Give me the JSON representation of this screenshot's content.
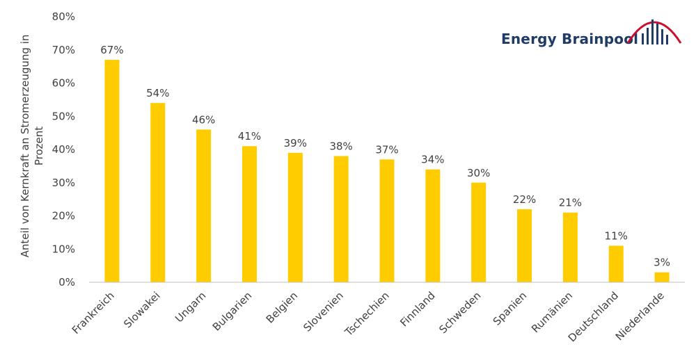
{
  "chart_data": {
    "type": "bar",
    "categories": [
      "Frankreich",
      "Slowakei",
      "Ungarn",
      "Bulgarien",
      "Belgien",
      "Slovenien",
      "Tschechien",
      "Finnland",
      "Schweden",
      "Spanien",
      "Rumänien",
      "Deutschland",
      "Niederlande"
    ],
    "values": [
      67,
      54,
      46,
      41,
      39,
      38,
      37,
      34,
      30,
      22,
      21,
      11,
      3
    ],
    "data_labels": [
      "67%",
      "54%",
      "46%",
      "41%",
      "39%",
      "38%",
      "37%",
      "34%",
      "30%",
      "22%",
      "21%",
      "11%",
      "3%"
    ],
    "ylabel_lines": [
      "Anteil von Kernkraft an  Stromerzeugung in",
      "Prozent"
    ],
    "ylim": [
      0,
      80
    ],
    "yticks": [
      "0%",
      "10%",
      "20%",
      "30%",
      "40%",
      "50%",
      "60%",
      "70%",
      "80%"
    ],
    "grid": false,
    "bar_color": "#FFCC00",
    "axis_color": "#BFBFBF"
  },
  "logo": {
    "text": "Energy Brainpool",
    "text_color": "#1F3B66",
    "accent_color": "#C8102E"
  }
}
